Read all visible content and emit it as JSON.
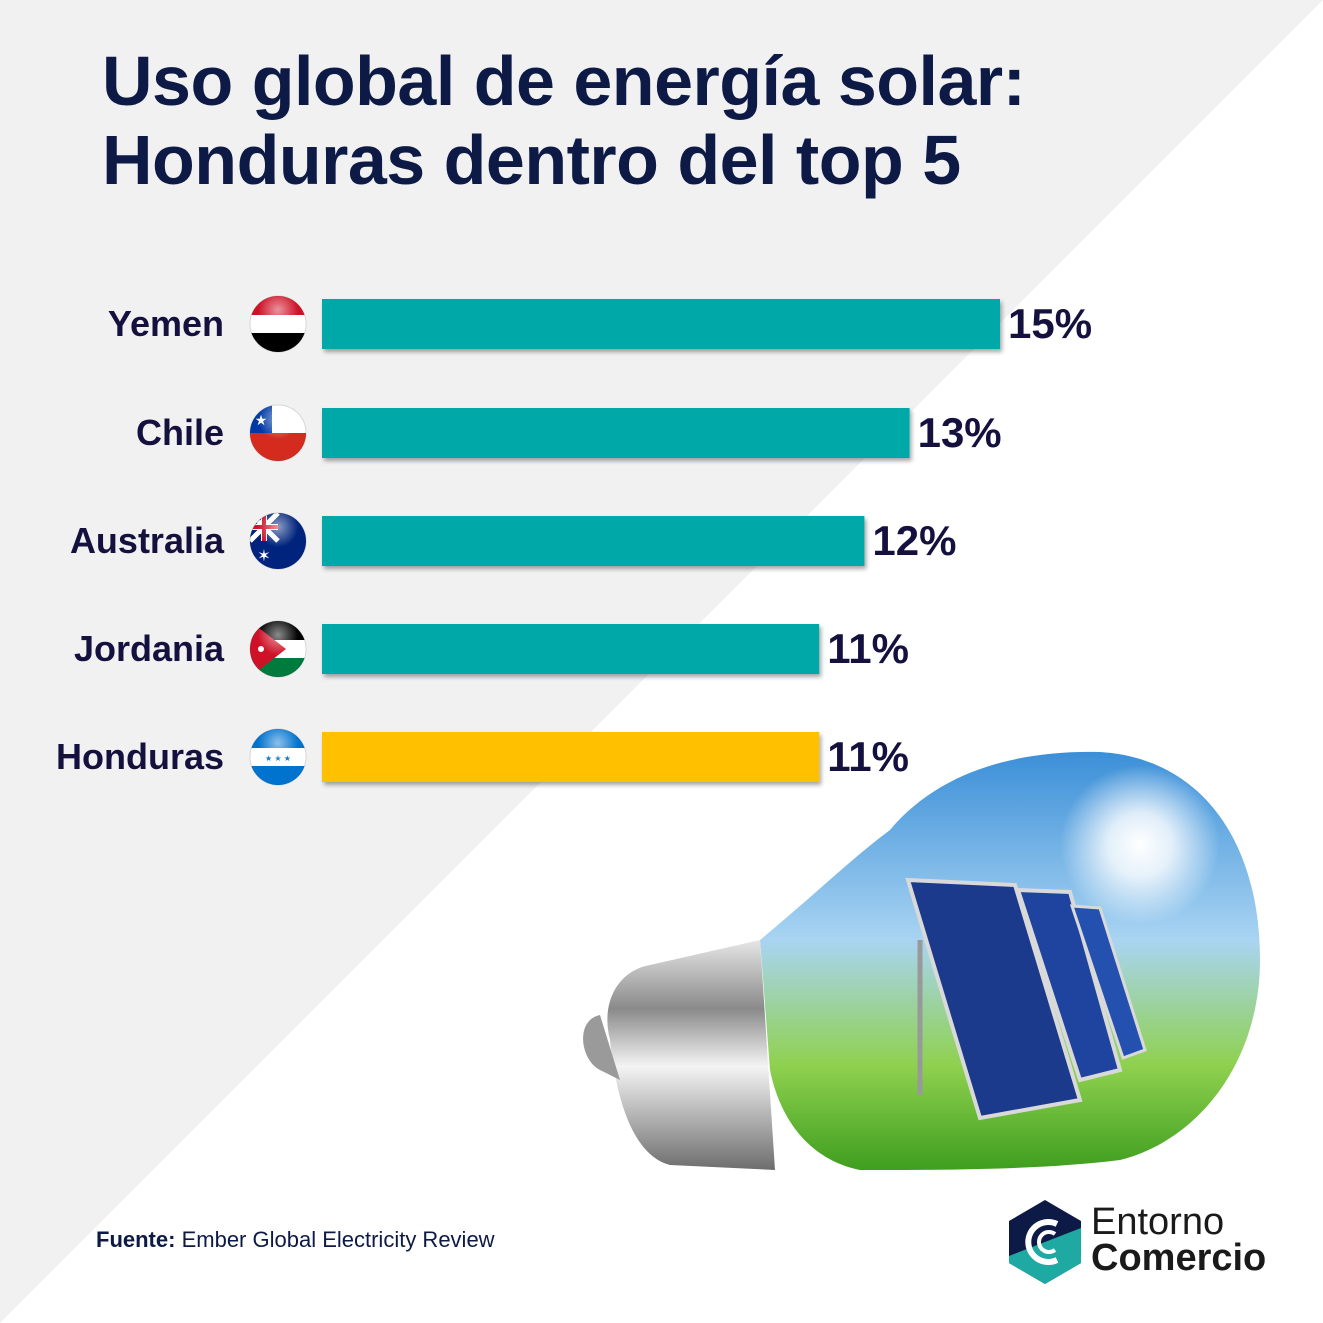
{
  "title": {
    "line1": "Uso global de energía solar:",
    "line2": "Honduras dentro del top 5"
  },
  "chart_data": {
    "type": "bar",
    "orientation": "horizontal",
    "title": "Uso global de energía solar: Honduras dentro del top 5",
    "categories": [
      "Yemen",
      "Chile",
      "Australia",
      "Jordania",
      "Honduras"
    ],
    "values": [
      15,
      13,
      12,
      11,
      11
    ],
    "value_labels": [
      "15%",
      "13%",
      "12%",
      "11%",
      "11%"
    ],
    "unit": "%",
    "xlim": [
      0,
      15
    ],
    "highlight": "Honduras",
    "colors": {
      "default": "#00a8a8",
      "highlight": "#ffc000"
    },
    "grid": false
  },
  "footer": {
    "source_label": "Fuente:",
    "source_text": "Ember Global Electricity Review"
  },
  "logo": {
    "line1": "Entorno",
    "line2": "Comercio"
  }
}
